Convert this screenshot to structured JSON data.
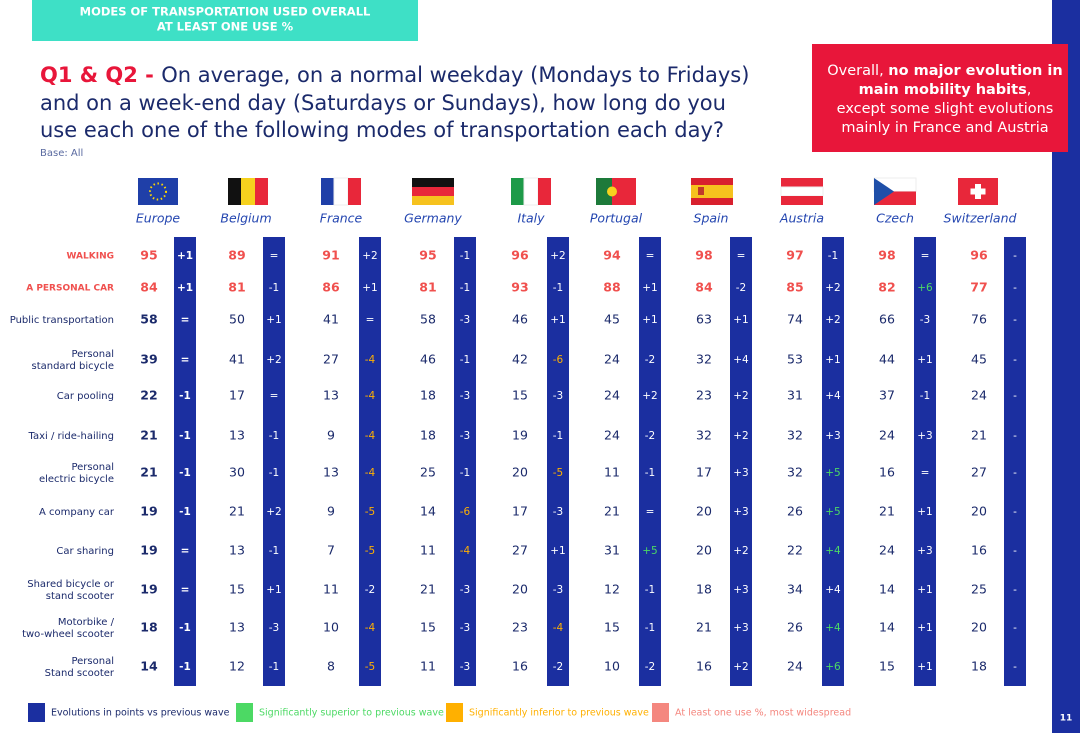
{
  "header": {
    "tag_lines": [
      "MODES OF TRANSPORTATION USED OVERALL",
      "AT LEAST ONE USE %"
    ]
  },
  "question": {
    "prefix": "Q1 & Q2 - ",
    "lines": [
      "On average, on a normal weekday (Mondays to Fridays)",
      "and on a week-end day (Saturdays or Sundays), how long do you",
      "use each one of the following modes of transportation each day?"
    ],
    "base": "Base: All"
  },
  "callout": {
    "lines": [
      [
        {
          "text": "Overall, "
        },
        {
          "text": "no major evolution in",
          "bold": true
        }
      ],
      [
        {
          "text": "main mobility habits",
          "bold": true
        },
        {
          "text": ","
        }
      ],
      [
        {
          "text": "except some slight evolutions"
        }
      ],
      [
        {
          "text": "mainly in France and Austria"
        }
      ]
    ]
  },
  "table": {
    "countries": [
      "Europe",
      "Belgium",
      "France",
      "Germany",
      "Italy",
      "Portugal",
      "Spain",
      "Austria",
      "Czech",
      "Switzerland"
    ],
    "rows": [
      {
        "label": [
          "WALKING"
        ],
        "color": "#f0504e",
        "cells": [
          {
            "value": 95,
            "change": "+1"
          },
          {
            "value": 89,
            "change": "="
          },
          {
            "value": 91,
            "change": "+2"
          },
          {
            "value": 95,
            "change": "-1"
          },
          {
            "value": 96,
            "change": "+2"
          },
          {
            "value": 94,
            "change": "="
          },
          {
            "value": 98,
            "change": "="
          },
          {
            "value": 97,
            "change": "-1"
          },
          {
            "value": 98,
            "change": "="
          },
          {
            "value": 96,
            "change": "-"
          }
        ]
      },
      {
        "label": [
          "A PERSONAL CAR"
        ],
        "color": "#f0504e",
        "cells": [
          {
            "value": 84,
            "change": "+1"
          },
          {
            "value": 81,
            "change": "-1"
          },
          {
            "value": 86,
            "change": "+1"
          },
          {
            "value": 81,
            "change": "-1"
          },
          {
            "value": 93,
            "change": "-1"
          },
          {
            "value": 88,
            "change": "+1"
          },
          {
            "value": 84,
            "change": "-2"
          },
          {
            "value": 85,
            "change": "+2"
          },
          {
            "value": 82,
            "change": "+6",
            "change_color": "#4cd964"
          },
          {
            "value": 77,
            "change": "-"
          }
        ]
      },
      {
        "label": [
          "Public transportation"
        ],
        "cells": [
          {
            "value": 58,
            "change": "="
          },
          {
            "value": 50,
            "change": "+1"
          },
          {
            "value": 41,
            "change": "="
          },
          {
            "value": 58,
            "change": "-3"
          },
          {
            "value": 46,
            "change": "+1"
          },
          {
            "value": 45,
            "change": "+1"
          },
          {
            "value": 63,
            "change": "+1"
          },
          {
            "value": 74,
            "change": "+2"
          },
          {
            "value": 66,
            "change": "-3"
          },
          {
            "value": 76,
            "change": "-"
          }
        ]
      },
      {
        "label": [
          "Personal",
          "standard bicycle"
        ],
        "cells": [
          {
            "value": 39,
            "change": "="
          },
          {
            "value": 41,
            "change": "+2"
          },
          {
            "value": 27,
            "change": "-4",
            "change_color": "#ffb000"
          },
          {
            "value": 46,
            "change": "-1"
          },
          {
            "value": 42,
            "change": "-6",
            "change_color": "#ffb000"
          },
          {
            "value": 24,
            "change": "-2"
          },
          {
            "value": 32,
            "change": "+4"
          },
          {
            "value": 53,
            "change": "+1"
          },
          {
            "value": 44,
            "change": "+1"
          },
          {
            "value": 45,
            "change": "-"
          }
        ]
      },
      {
        "label": [
          "Car pooling"
        ],
        "cells": [
          {
            "value": 22,
            "change": "-1"
          },
          {
            "value": 17,
            "change": "="
          },
          {
            "value": 13,
            "change": "-4",
            "change_color": "#ffb000"
          },
          {
            "value": 18,
            "change": "-3"
          },
          {
            "value": 15,
            "change": "-3"
          },
          {
            "value": 24,
            "change": "+2"
          },
          {
            "value": 23,
            "change": "+2"
          },
          {
            "value": 31,
            "change": "+4"
          },
          {
            "value": 37,
            "change": "-1"
          },
          {
            "value": 24,
            "change": "-"
          }
        ]
      },
      {
        "label": [
          "Taxi / ride-hailing"
        ],
        "cells": [
          {
            "value": 21,
            "change": "-1"
          },
          {
            "value": 13,
            "change": "-1"
          },
          {
            "value": 9,
            "change": "-4",
            "change_color": "#ffb000"
          },
          {
            "value": 18,
            "change": "-3"
          },
          {
            "value": 19,
            "change": "-1"
          },
          {
            "value": 24,
            "change": "-2"
          },
          {
            "value": 32,
            "change": "+2"
          },
          {
            "value": 32,
            "change": "+3"
          },
          {
            "value": 24,
            "change": "+3"
          },
          {
            "value": 21,
            "change": "-"
          }
        ]
      },
      {
        "label": [
          "Personal",
          "electric bicycle"
        ],
        "cells": [
          {
            "value": 21,
            "change": "-1"
          },
          {
            "value": 30,
            "change": "-1"
          },
          {
            "value": 13,
            "change": "-4",
            "change_color": "#ffb000"
          },
          {
            "value": 25,
            "change": "-1"
          },
          {
            "value": 20,
            "change": "-5",
            "change_color": "#ffb000"
          },
          {
            "value": 11,
            "change": "-1"
          },
          {
            "value": 17,
            "change": "+3"
          },
          {
            "value": 32,
            "change": "+5",
            "change_color": "#4cd964"
          },
          {
            "value": 16,
            "change": "="
          },
          {
            "value": 27,
            "change": "-"
          }
        ]
      },
      {
        "label": [
          "A company car"
        ],
        "cells": [
          {
            "value": 19,
            "change": "-1"
          },
          {
            "value": 21,
            "change": "+2"
          },
          {
            "value": 9,
            "change": "-5",
            "change_color": "#ffb000"
          },
          {
            "value": 14,
            "change": "-6",
            "change_color": "#ffb000"
          },
          {
            "value": 17,
            "change": "-3"
          },
          {
            "value": 21,
            "change": "="
          },
          {
            "value": 20,
            "change": "+3"
          },
          {
            "value": 26,
            "change": "+5",
            "change_color": "#4cd964"
          },
          {
            "value": 21,
            "change": "+1"
          },
          {
            "value": 20,
            "change": "-"
          }
        ]
      },
      {
        "label": [
          "Car sharing"
        ],
        "cells": [
          {
            "value": 19,
            "change": "="
          },
          {
            "value": 13,
            "change": "-1"
          },
          {
            "value": 7,
            "change": "-5",
            "change_color": "#ffb000"
          },
          {
            "value": 11,
            "change": "-4",
            "change_color": "#ffb000"
          },
          {
            "value": 27,
            "change": "+1"
          },
          {
            "value": 31,
            "change": "+5",
            "change_color": "#4cd964"
          },
          {
            "value": 20,
            "change": "+2"
          },
          {
            "value": 22,
            "change": "+4",
            "change_color": "#4cd964"
          },
          {
            "value": 24,
            "change": "+3"
          },
          {
            "value": 16,
            "change": "-"
          }
        ]
      },
      {
        "label": [
          "Shared bicycle or",
          "stand scooter"
        ],
        "cells": [
          {
            "value": 19,
            "change": "="
          },
          {
            "value": 15,
            "change": "+1"
          },
          {
            "value": 11,
            "change": "-2"
          },
          {
            "value": 21,
            "change": "-3"
          },
          {
            "value": 20,
            "change": "-3"
          },
          {
            "value": 12,
            "change": "-1"
          },
          {
            "value": 18,
            "change": "+3"
          },
          {
            "value": 34,
            "change": "+4"
          },
          {
            "value": 14,
            "change": "+1"
          },
          {
            "value": 25,
            "change": "-"
          }
        ]
      },
      {
        "label": [
          "Motorbike /",
          "two-wheel scooter"
        ],
        "cells": [
          {
            "value": 18,
            "change": "-1"
          },
          {
            "value": 13,
            "change": "-3"
          },
          {
            "value": 10,
            "change": "-4",
            "change_color": "#ffb000"
          },
          {
            "value": 15,
            "change": "-3"
          },
          {
            "value": 23,
            "change": "-4",
            "change_color": "#ffb000"
          },
          {
            "value": 15,
            "change": "-1"
          },
          {
            "value": 21,
            "change": "+3"
          },
          {
            "value": 26,
            "change": "+4",
            "change_color": "#4cd964"
          },
          {
            "value": 14,
            "change": "+1"
          },
          {
            "value": 20,
            "change": "-"
          }
        ]
      },
      {
        "label": [
          "Personal",
          "Stand scooter"
        ],
        "cells": [
          {
            "value": 14,
            "change": "-1"
          },
          {
            "value": 12,
            "change": "-1"
          },
          {
            "value": 8,
            "change": "-5",
            "change_color": "#ffb000"
          },
          {
            "value": 11,
            "change": "-3"
          },
          {
            "value": 16,
            "change": "-2"
          },
          {
            "value": 10,
            "change": "-2"
          },
          {
            "value": 16,
            "change": "+2"
          },
          {
            "value": 24,
            "change": "+6",
            "change_color": "#4cd964"
          },
          {
            "value": 15,
            "change": "+1"
          },
          {
            "value": 18,
            "change": "-"
          }
        ]
      }
    ]
  },
  "legend": [
    {
      "label": "Evolutions in points vs previous wave",
      "color": "#1b2fa0",
      "text_color": "#1b2a6b"
    },
    {
      "label": "Significantly superior to previous wave",
      "color": "#4cd964",
      "text_color": "#4cd964"
    },
    {
      "label": "Significantly inferior to previous wave",
      "color": "#ffb000",
      "text_color": "#ffb000"
    },
    {
      "label": "At least one use %, most widespread",
      "color": "#f4877f",
      "text_color": "#f4877f"
    }
  ],
  "page_number": "11"
}
